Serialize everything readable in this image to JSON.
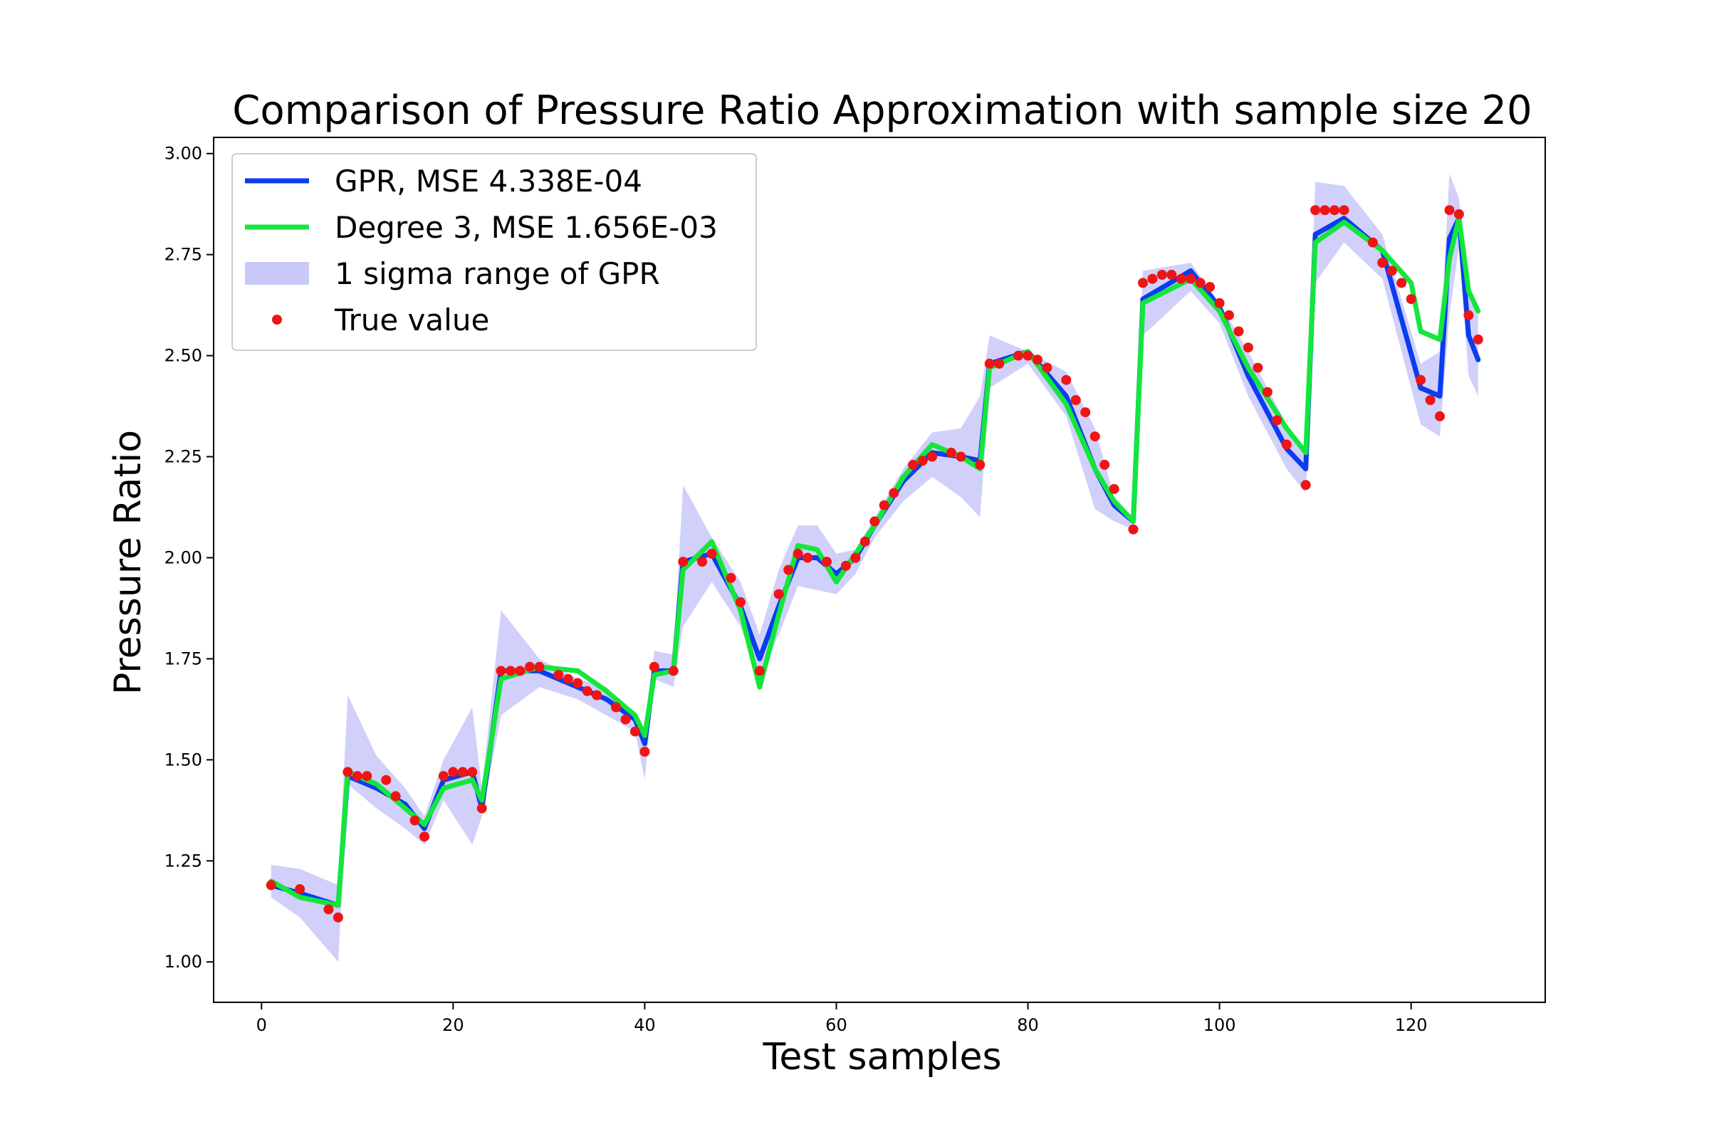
{
  "chart_data": {
    "type": "line",
    "title": "Comparison of Pressure Ratio Approximation with sample size 20",
    "xlabel": "Test samples",
    "ylabel": "Pressure Ratio",
    "xlim": [
      -5,
      134
    ],
    "ylim": [
      0.9,
      3.04
    ],
    "xticks": [
      0,
      20,
      40,
      60,
      80,
      100,
      120
    ],
    "yticks": [
      1.0,
      1.25,
      1.5,
      1.75,
      2.0,
      2.25,
      2.5,
      2.75,
      3.0
    ],
    "grid": false,
    "legend_position": "top-left",
    "colors": {
      "gpr": "#0a3cf0",
      "degree3": "#14e63c",
      "sigma": "#c8c8fa",
      "true": "#f01414"
    },
    "legend": [
      {
        "key": "gpr",
        "label": "GPR, MSE 4.338E-04"
      },
      {
        "key": "degree3",
        "label": "Degree 3, MSE 1.656E-03"
      },
      {
        "key": "sigma",
        "label": "1 sigma range of GPR"
      },
      {
        "key": "true",
        "label": "True value"
      }
    ],
    "series": [
      {
        "key": "gpr",
        "name": "GPR, MSE 4.338E-04",
        "x": [
          1,
          4,
          8,
          9,
          12,
          15,
          17,
          19,
          22,
          23,
          25,
          29,
          33,
          36,
          39,
          40,
          41,
          43,
          44,
          47,
          50,
          52,
          54,
          56,
          58,
          60,
          62,
          64,
          67,
          70,
          73,
          75,
          76,
          80,
          84,
          87,
          89,
          91,
          92,
          97,
          100,
          103,
          107,
          109,
          110,
          113,
          117,
          121,
          123,
          124,
          125,
          126,
          127
        ],
        "y": [
          1.19,
          1.17,
          1.14,
          1.46,
          1.43,
          1.39,
          1.33,
          1.45,
          1.47,
          1.38,
          1.72,
          1.72,
          1.68,
          1.65,
          1.6,
          1.54,
          1.72,
          1.72,
          1.99,
          2.01,
          1.88,
          1.75,
          1.88,
          2.0,
          2.0,
          1.96,
          2.0,
          2.08,
          2.19,
          2.26,
          2.25,
          2.24,
          2.48,
          2.51,
          2.4,
          2.22,
          2.13,
          2.09,
          2.64,
          2.71,
          2.62,
          2.45,
          2.27,
          2.22,
          2.8,
          2.84,
          2.76,
          2.42,
          2.4,
          2.79,
          2.84,
          2.55,
          2.49
        ]
      },
      {
        "key": "degree3",
        "name": "Degree 3, MSE 1.656E-03",
        "x": [
          1,
          4,
          8,
          9,
          12,
          15,
          17,
          19,
          22,
          23,
          25,
          29,
          33,
          36,
          39,
          40,
          41,
          43,
          44,
          47,
          50,
          52,
          54,
          56,
          58,
          60,
          62,
          64,
          67,
          70,
          73,
          75,
          76,
          80,
          84,
          87,
          89,
          91,
          92,
          97,
          100,
          103,
          107,
          109,
          110,
          113,
          117,
          120,
          121,
          123,
          124,
          125,
          126,
          127
        ],
        "y": [
          1.2,
          1.16,
          1.14,
          1.47,
          1.44,
          1.38,
          1.34,
          1.43,
          1.45,
          1.4,
          1.7,
          1.73,
          1.72,
          1.67,
          1.61,
          1.56,
          1.71,
          1.72,
          1.97,
          2.04,
          1.87,
          1.68,
          1.86,
          2.03,
          2.02,
          1.94,
          2.01,
          2.08,
          2.2,
          2.28,
          2.25,
          2.22,
          2.47,
          2.51,
          2.38,
          2.22,
          2.14,
          2.09,
          2.63,
          2.69,
          2.61,
          2.47,
          2.32,
          2.26,
          2.78,
          2.83,
          2.76,
          2.68,
          2.56,
          2.54,
          2.74,
          2.84,
          2.66,
          2.61
        ]
      },
      {
        "key": "sigma",
        "name": "1 sigma range of GPR",
        "x": [
          1,
          4,
          8,
          9,
          12,
          15,
          17,
          19,
          22,
          23,
          25,
          29,
          33,
          36,
          39,
          40,
          41,
          43,
          44,
          47,
          50,
          52,
          54,
          56,
          58,
          60,
          62,
          64,
          67,
          70,
          73,
          75,
          76,
          80,
          84,
          87,
          89,
          91,
          92,
          97,
          100,
          103,
          107,
          109,
          110,
          113,
          117,
          121,
          123,
          124,
          125,
          126,
          127
        ],
        "upper": [
          1.24,
          1.23,
          1.19,
          1.66,
          1.51,
          1.43,
          1.36,
          1.5,
          1.63,
          1.43,
          1.87,
          1.75,
          1.7,
          1.68,
          1.61,
          1.55,
          1.77,
          1.76,
          2.18,
          2.05,
          1.94,
          1.81,
          1.97,
          2.08,
          2.08,
          2.01,
          2.02,
          2.1,
          2.22,
          2.31,
          2.32,
          2.4,
          2.55,
          2.51,
          2.46,
          2.32,
          2.15,
          2.1,
          2.71,
          2.73,
          2.63,
          2.51,
          2.33,
          2.27,
          2.93,
          2.92,
          2.8,
          2.48,
          2.51,
          2.95,
          2.89,
          2.68,
          2.6
        ],
        "lower": [
          1.16,
          1.11,
          1.0,
          1.44,
          1.38,
          1.33,
          1.29,
          1.4,
          1.29,
          1.36,
          1.61,
          1.68,
          1.65,
          1.61,
          1.57,
          1.45,
          1.7,
          1.68,
          1.83,
          1.94,
          1.83,
          1.7,
          1.81,
          1.93,
          1.92,
          1.91,
          1.96,
          2.05,
          2.14,
          2.2,
          2.15,
          2.1,
          2.42,
          2.48,
          2.35,
          2.12,
          2.09,
          2.07,
          2.55,
          2.66,
          2.58,
          2.4,
          2.22,
          2.16,
          2.68,
          2.78,
          2.69,
          2.33,
          2.3,
          2.6,
          2.77,
          2.45,
          2.4
        ]
      },
      {
        "key": "true",
        "name": "True value",
        "x": [
          1,
          4,
          7,
          8,
          9,
          10,
          11,
          13,
          14,
          16,
          17,
          19,
          20,
          21,
          22,
          23,
          25,
          26,
          27,
          28,
          29,
          31,
          32,
          33,
          34,
          35,
          37,
          38,
          39,
          40,
          41,
          43,
          44,
          46,
          47,
          49,
          50,
          52,
          54,
          55,
          56,
          57,
          59,
          61,
          62,
          63,
          64,
          65,
          66,
          68,
          69,
          70,
          72,
          73,
          75,
          76,
          77,
          79,
          80,
          81,
          82,
          84,
          85,
          86,
          87,
          88,
          89,
          91,
          92,
          93,
          94,
          95,
          96,
          97,
          98,
          99,
          100,
          101,
          102,
          103,
          104,
          105,
          106,
          107,
          109,
          110,
          111,
          112,
          113,
          116,
          117,
          118,
          119,
          120,
          121,
          122,
          123,
          124,
          125,
          126,
          127
        ],
        "y": [
          1.19,
          1.18,
          1.13,
          1.11,
          1.47,
          1.46,
          1.46,
          1.45,
          1.41,
          1.35,
          1.31,
          1.46,
          1.47,
          1.47,
          1.47,
          1.38,
          1.72,
          1.72,
          1.72,
          1.73,
          1.73,
          1.71,
          1.7,
          1.69,
          1.67,
          1.66,
          1.63,
          1.6,
          1.57,
          1.52,
          1.73,
          1.72,
          1.99,
          1.99,
          2.01,
          1.95,
          1.89,
          1.72,
          1.91,
          1.97,
          2.01,
          2.0,
          1.99,
          1.98,
          2.0,
          2.04,
          2.09,
          2.13,
          2.16,
          2.23,
          2.24,
          2.25,
          2.26,
          2.25,
          2.23,
          2.48,
          2.48,
          2.5,
          2.5,
          2.49,
          2.47,
          2.44,
          2.39,
          2.36,
          2.3,
          2.23,
          2.17,
          2.07,
          2.68,
          2.69,
          2.7,
          2.7,
          2.69,
          2.69,
          2.68,
          2.67,
          2.63,
          2.6,
          2.56,
          2.52,
          2.47,
          2.41,
          2.34,
          2.28,
          2.18,
          2.86,
          2.86,
          2.86,
          2.86,
          2.78,
          2.73,
          2.71,
          2.68,
          2.64,
          2.44,
          2.39,
          2.35,
          2.86,
          2.85,
          2.6,
          2.54
        ]
      }
    ]
  }
}
